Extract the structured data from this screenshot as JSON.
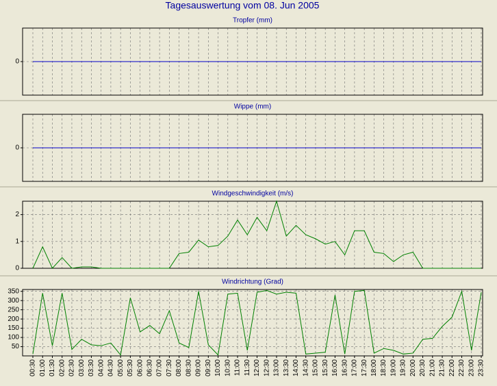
{
  "title": "Tagesauswertung vom 08. Jun 2005",
  "chart_data": [
    {
      "type": "line",
      "title": "Tropfer (mm)",
      "ylim": [
        -1,
        1
      ],
      "yticks": [
        0
      ],
      "grid": true,
      "series": [
        {
          "color": "#0000c8",
          "values": [
            0,
            0,
            0,
            0,
            0,
            0,
            0,
            0,
            0,
            0,
            0,
            0,
            0,
            0,
            0,
            0,
            0,
            0,
            0,
            0,
            0,
            0,
            0,
            0,
            0,
            0,
            0,
            0,
            0,
            0,
            0,
            0,
            0,
            0,
            0,
            0,
            0,
            0,
            0,
            0,
            0,
            0,
            0,
            0,
            0,
            0,
            0
          ]
        }
      ]
    },
    {
      "type": "line",
      "title": "Wippe (mm)",
      "ylim": [
        -1,
        1
      ],
      "yticks": [
        0
      ],
      "grid": true,
      "series": [
        {
          "color": "#0000c8",
          "values": [
            0,
            0,
            0,
            0,
            0,
            0,
            0,
            0,
            0,
            0,
            0,
            0,
            0,
            0,
            0,
            0,
            0,
            0,
            0,
            0,
            0,
            0,
            0,
            0,
            0,
            0,
            0,
            0,
            0,
            0,
            0,
            0,
            0,
            0,
            0,
            0,
            0,
            0,
            0,
            0,
            0,
            0,
            0,
            0,
            0,
            0,
            0
          ]
        }
      ]
    },
    {
      "type": "line",
      "title": "Windgeschwindigkeit (m/s)",
      "ylim": [
        0,
        2.5
      ],
      "yticks": [
        0,
        1,
        2
      ],
      "grid": true,
      "series": [
        {
          "color": "#008000",
          "values": [
            0,
            0.8,
            0,
            0.4,
            0,
            0.05,
            0.05,
            0,
            0,
            0,
            0,
            0,
            0,
            0,
            0,
            0.55,
            0.6,
            1.05,
            0.8,
            0.85,
            1.2,
            1.8,
            1.25,
            1.9,
            1.4,
            2.5,
            1.2,
            1.6,
            1.25,
            1.1,
            0.9,
            1.0,
            0.5,
            1.4,
            1.4,
            0.6,
            0.55,
            0.25,
            0.5,
            0.6,
            0,
            0,
            0,
            0,
            0,
            0,
            0
          ]
        }
      ]
    },
    {
      "type": "line",
      "title": "Windrichtung (Grad)",
      "ylim": [
        0,
        360
      ],
      "yticks": [
        50,
        100,
        150,
        200,
        250,
        300,
        350
      ],
      "grid": true,
      "categories": [
        "00:30",
        "01:00",
        "01:30",
        "02:00",
        "02:30",
        "03:00",
        "03:30",
        "04:00",
        "04:30",
        "05:00",
        "05:30",
        "06:00",
        "06:30",
        "07:00",
        "07:30",
        "08:00",
        "08:30",
        "09:00",
        "09:30",
        "10:00",
        "10:30",
        "11:00",
        "11:30",
        "12:00",
        "12:30",
        "13:00",
        "13:30",
        "14:00",
        "14:30",
        "15:00",
        "15:30",
        "16:00",
        "16:30",
        "17:00",
        "17:30",
        "18:00",
        "18:30",
        "19:00",
        "19:30",
        "20:00",
        "20:30",
        "21:00",
        "21:30",
        "22:00",
        "22:30",
        "23:00",
        "23:30"
      ],
      "series": [
        {
          "color": "#008000",
          "values": [
            10,
            340,
            55,
            340,
            35,
            90,
            60,
            55,
            70,
            5,
            315,
            130,
            165,
            120,
            245,
            70,
            45,
            350,
            60,
            5,
            335,
            340,
            30,
            345,
            355,
            335,
            345,
            340,
            10,
            15,
            20,
            330,
            10,
            350,
            355,
            15,
            40,
            30,
            10,
            15,
            90,
            95,
            160,
            210,
            350,
            30,
            345
          ]
        }
      ]
    }
  ]
}
